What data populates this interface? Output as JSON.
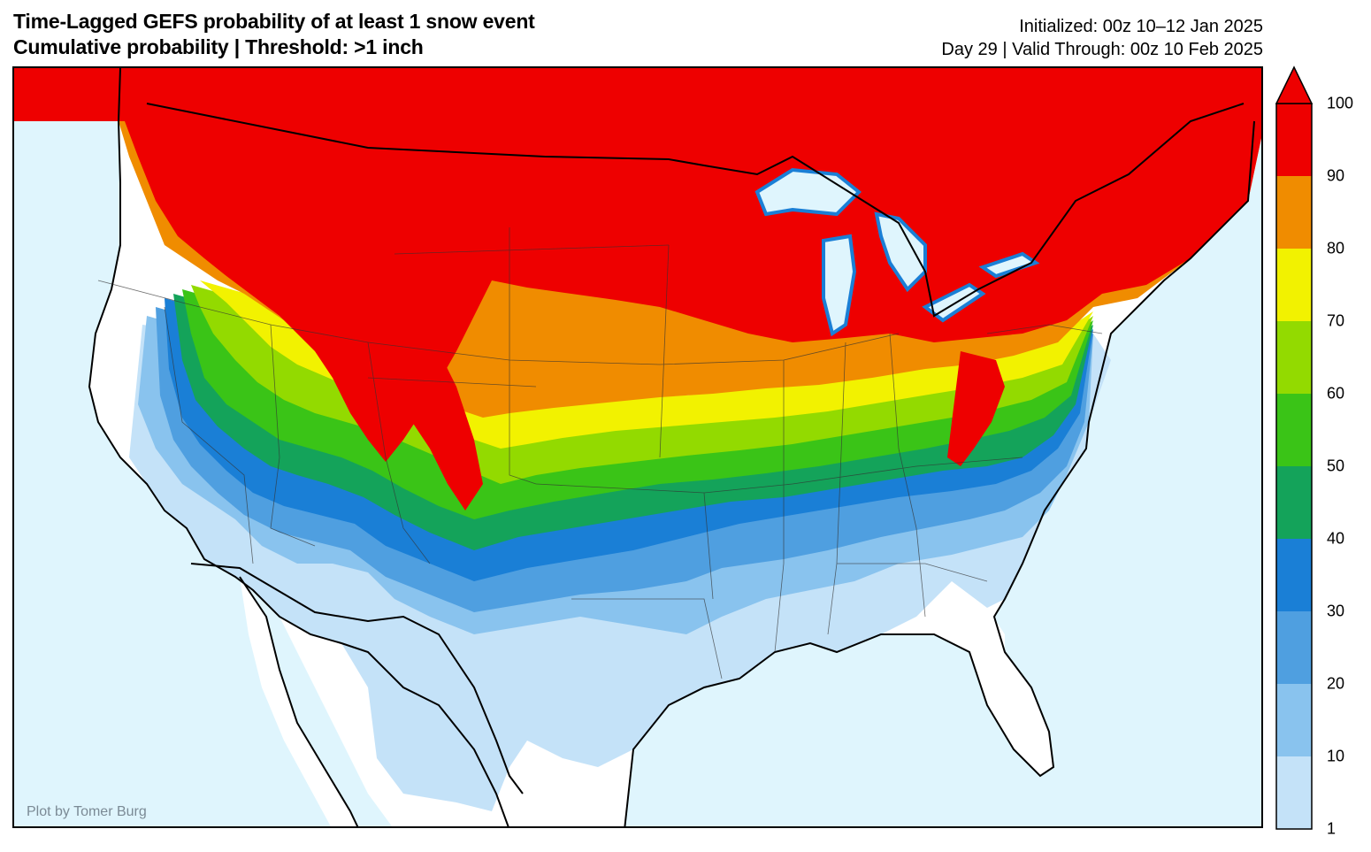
{
  "header": {
    "title_line1": "Time-Lagged GEFS probability of at least 1 snow event",
    "title_line2": "Cumulative probability | Threshold: >1 inch",
    "initialized": "Initialized: 00z 10–12 Jan 2025",
    "valid": "Day 29 | Valid Through: 00z 10 Feb 2025"
  },
  "map": {
    "credit": "Plot by Tomer Burg",
    "ocean_color": "#dff5fd",
    "land_color": "#ffffff",
    "border_color": "#000000"
  },
  "colorbar": {
    "ticks": [
      "100",
      "90",
      "80",
      "70",
      "60",
      "50",
      "40",
      "30",
      "20",
      "10",
      "1"
    ],
    "bins": [
      {
        "range": "1-10",
        "color": "#c4e2f8"
      },
      {
        "range": "10-20",
        "color": "#89c3ee"
      },
      {
        "range": "20-30",
        "color": "#4f9fe0"
      },
      {
        "range": "30-40",
        "color": "#1a7fd6"
      },
      {
        "range": "40-50",
        "color": "#14a35a"
      },
      {
        "range": "50-60",
        "color": "#3ac417"
      },
      {
        "range": "60-70",
        "color": "#93da00"
      },
      {
        "range": "70-80",
        "color": "#f2f200"
      },
      {
        "range": "80-90",
        "color": "#f08c00"
      },
      {
        "range": "90-100",
        "color": "#ee0000"
      }
    ],
    "overflow_arrow": "top"
  }
}
